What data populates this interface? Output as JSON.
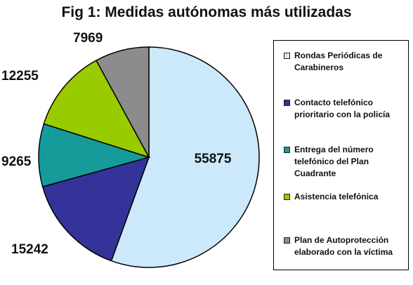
{
  "chart_data": {
    "type": "pie",
    "title": "Fig 1: Medidas autónomas más utilizadas",
    "categories": [
      "Rondas Periódicas de Carabineros",
      "Contacto telefónico prioritario con la policía",
      "Entrega del número telefónico del Plan Cuadrante",
      "Asistencia telefónica",
      "Plan de Autoprotección elaborado con la víctima"
    ],
    "values": [
      55875,
      15242,
      9265,
      12255,
      7969
    ],
    "data_labels": [
      "55875",
      "15242",
      "9265",
      "12255",
      "7969"
    ],
    "colors": [
      "#cce9fb",
      "#333399",
      "#169b9b",
      "#99cc00",
      "#8c8c8c"
    ],
    "legend_position": "right"
  }
}
